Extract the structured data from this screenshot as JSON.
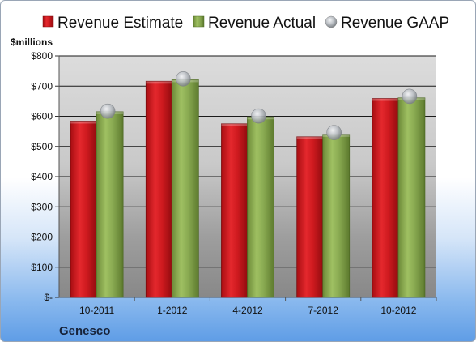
{
  "chart_data": {
    "type": "bar",
    "unit_label": "$millions",
    "company": "Genesco",
    "categories": [
      "10-2011",
      "1-2012",
      "4-2012",
      "7-2012",
      "10-2012"
    ],
    "series": [
      {
        "name": "Revenue Estimate",
        "kind": "bar",
        "color": "#d0181e",
        "values": [
          584,
          716,
          575,
          532,
          659
        ]
      },
      {
        "name": "Revenue Actual",
        "kind": "bar",
        "color": "#8aab52",
        "values": [
          615,
          721,
          598,
          540,
          661
        ]
      },
      {
        "name": "Revenue GAAP",
        "kind": "marker",
        "color": "#b8bcc2",
        "values": [
          617,
          724,
          601,
          546,
          666
        ]
      }
    ],
    "ylim": [
      0,
      800
    ],
    "y_ticks": [
      0,
      100,
      200,
      300,
      400,
      500,
      600,
      700,
      800
    ],
    "y_tick_labels": [
      "$-",
      "$100",
      "$200",
      "$300",
      "$400",
      "$500",
      "$600",
      "$700",
      "$800"
    ],
    "grid": true,
    "legend_position": "top"
  }
}
